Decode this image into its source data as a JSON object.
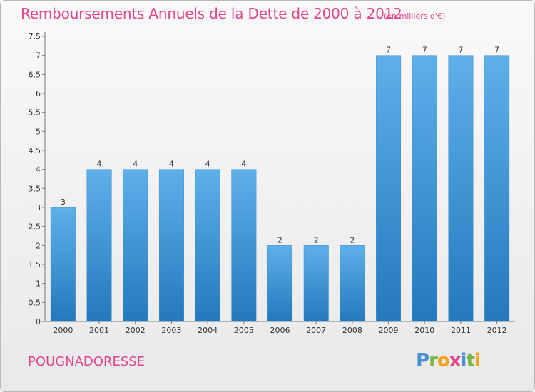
{
  "header": {
    "title": "Remboursements Annuels de la Dette de 2000 à 2012",
    "subtitle": "(en milliers d'€)"
  },
  "footer": {
    "commune": "POUGNADORESSE",
    "logo_letters": [
      "P",
      "r",
      "o",
      "x",
      "i",
      "t",
      "i"
    ],
    "logo_colors": [
      "#4a90d9",
      "#7ab648",
      "#f4a21e",
      "#e2458a",
      "#4a90d9",
      "#7ab648",
      "#f4a21e"
    ]
  },
  "chart_data": {
    "type": "bar",
    "title": "Remboursements Annuels de la Dette de 2000 à 2012",
    "subtitle": "(en milliers d'€)",
    "categories": [
      "2000",
      "2001",
      "2002",
      "2003",
      "2004",
      "2005",
      "2006",
      "2007",
      "2008",
      "2009",
      "2010",
      "2011",
      "2012"
    ],
    "values": [
      3,
      4,
      4,
      4,
      4,
      4,
      2,
      2,
      2,
      7,
      7,
      7,
      7
    ],
    "data_labels": [
      "3",
      "4",
      "4",
      "4",
      "4",
      "4",
      "2",
      "2",
      "2",
      "7",
      "7",
      "7",
      "7"
    ],
    "y_ticks": [
      0,
      0.5,
      1,
      1.5,
      2,
      2.5,
      3,
      3.5,
      4,
      4.5,
      5,
      5.5,
      6,
      6.5,
      7,
      7.5
    ],
    "y_tick_labels": [
      "0",
      "0.5",
      "1",
      "1.5",
      "2",
      "2.5",
      "3",
      "3.5",
      "4",
      "4.5",
      "5",
      "5.5",
      "6",
      "6.5",
      "7",
      "7.5"
    ],
    "ylim": [
      0,
      7.5
    ],
    "grid": false,
    "bar_color_top": "#5eb0ea",
    "bar_color_bottom": "#2479bd"
  }
}
